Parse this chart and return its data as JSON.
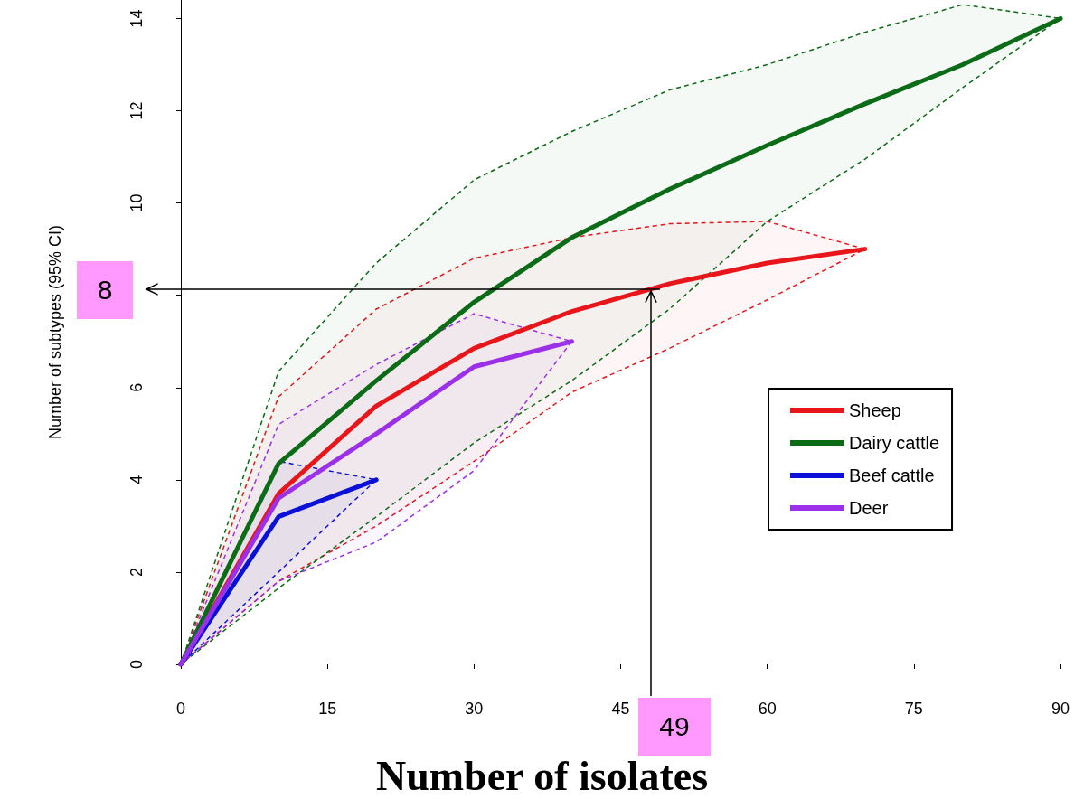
{
  "chart_data": {
    "type": "line",
    "xlabel": "Number of isolates",
    "ylabel": "Number of subtypes (95% CI)",
    "xlim": [
      0,
      90
    ],
    "xticks": [
      0,
      15,
      30,
      45,
      60,
      75,
      90
    ],
    "ylim": [
      0,
      14.4
    ],
    "yticks": [
      0,
      2,
      4,
      6,
      {
        "value": 8,
        "label": null
      },
      10,
      12,
      14
    ],
    "grid": false,
    "legend": "bottom right",
    "marker": "none",
    "annotations": [
      "8",
      "49"
    ],
    "series": [
      {
        "name": "Sheep",
        "color": "#e8161b",
        "x": [
          0,
          10,
          20,
          30,
          40,
          50,
          60,
          70
        ],
        "values": [
          0,
          3.7,
          5.6,
          6.85,
          7.65,
          8.25,
          8.7,
          9.0
        ],
        "upper": [
          0,
          5.8,
          7.7,
          8.8,
          9.25,
          9.55,
          9.6,
          9.0
        ],
        "lower": [
          0,
          1.8,
          3.0,
          4.4,
          5.9,
          6.85,
          7.9,
          9.0
        ]
      },
      {
        "name": "Dairy cattle",
        "color": "#0b6b16",
        "x": [
          0,
          10,
          20,
          30,
          40,
          50,
          60,
          70,
          80,
          90
        ],
        "values": [
          0,
          4.35,
          6.15,
          7.85,
          9.25,
          10.3,
          11.25,
          12.15,
          13.0,
          14.0
        ],
        "upper": [
          0,
          6.35,
          8.7,
          10.5,
          11.55,
          12.45,
          13.0,
          13.7,
          14.3,
          14.0
        ],
        "lower": [
          0,
          1.65,
          3.2,
          4.8,
          6.15,
          7.7,
          9.6,
          10.95,
          12.5,
          14.0
        ]
      },
      {
        "name": "Beef cattle",
        "color": "#0a10d8",
        "x": [
          0,
          10,
          20
        ],
        "values": [
          0,
          3.2,
          4.0
        ],
        "upper": [
          0,
          4.4,
          4.0
        ],
        "lower": [
          0,
          2.0,
          4.0
        ]
      },
      {
        "name": "Deer",
        "color": "#9b30e8",
        "x": [
          0,
          10,
          20,
          30,
          40
        ],
        "values": [
          0,
          3.6,
          5.0,
          6.45,
          7.0
        ],
        "upper": [
          0,
          5.2,
          6.5,
          7.6,
          7.0
        ],
        "lower": [
          0,
          1.8,
          2.65,
          4.2,
          7.0
        ]
      }
    ]
  }
}
